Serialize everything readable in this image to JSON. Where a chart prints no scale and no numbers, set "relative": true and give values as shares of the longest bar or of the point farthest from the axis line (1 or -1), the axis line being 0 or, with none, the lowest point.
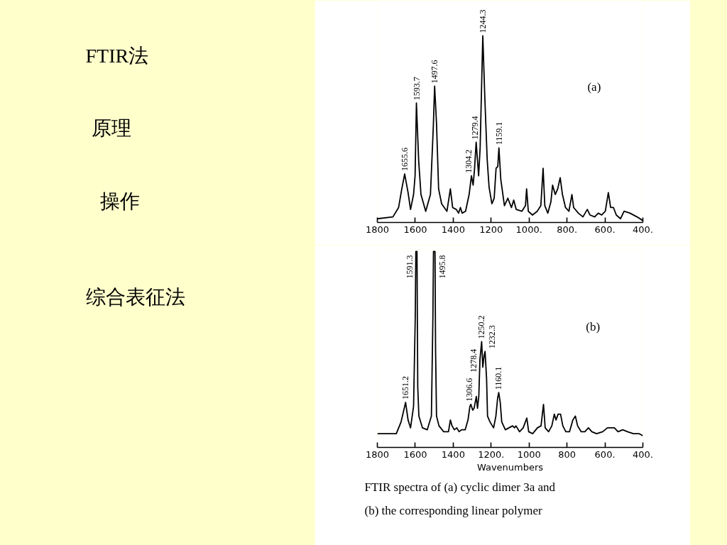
{
  "chart_data": [
    {
      "type": "other",
      "annotations": [
        "FTIR法",
        "原理",
        "操作",
        "综合表征法"
      ]
    },
    {
      "type": "line",
      "title": "(a)",
      "relative": true,
      "xlim": [
        1800,
        400
      ],
      "xticks": [
        1800,
        1600,
        1400,
        1200,
        {
          "value": 1000,
          "label": "1000."
        },
        {
          "value": 800,
          "label": "800."
        },
        {
          "value": 600,
          "label": "600."
        },
        {
          "value": 400,
          "label": "400."
        }
      ],
      "series": [
        {
          "color": "#000000",
          "x": [
            1800,
            1718,
            1688,
            1671,
            1656,
            1638,
            1625,
            1609,
            1601,
            1594,
            1582,
            1570,
            1545,
            1520,
            1505,
            1498,
            1488,
            1477,
            1461,
            1433,
            1415,
            1403,
            1384,
            1372,
            1362,
            1353,
            1335,
            1316,
            1304,
            1295,
            1288,
            1279,
            1266,
            1258,
            1244,
            1233,
            1221,
            1211,
            1196,
            1184,
            1174,
            1165,
            1159,
            1149,
            1130,
            1112,
            1093,
            1081,
            1068,
            1038,
            1019,
            1013,
            1004,
            982,
            957,
            938,
            926,
            917,
            901,
            885,
            876,
            862,
            849,
            836,
            824,
            808,
            790,
            774,
            765,
            740,
            716,
            693,
            679,
            654,
            635,
            617,
            598,
            582,
            570,
            555,
            540,
            518,
            499,
            468,
            431,
            400
          ],
          "values": [
            0.02,
            0.03,
            0.08,
            0.18,
            0.26,
            0.16,
            0.07,
            0.15,
            0.25,
            0.64,
            0.33,
            0.15,
            0.06,
            0.15,
            0.51,
            0.73,
            0.53,
            0.18,
            0.1,
            0.06,
            0.18,
            0.08,
            0.07,
            0.05,
            0.08,
            0.05,
            0.06,
            0.15,
            0.25,
            0.2,
            0.28,
            0.43,
            0.25,
            0.4,
            1.0,
            0.66,
            0.34,
            0.19,
            0.1,
            0.13,
            0.29,
            0.3,
            0.4,
            0.23,
            0.09,
            0.13,
            0.08,
            0.12,
            0.07,
            0.06,
            0.09,
            0.18,
            0.06,
            0.04,
            0.06,
            0.09,
            0.29,
            0.09,
            0.05,
            0.11,
            0.2,
            0.15,
            0.18,
            0.24,
            0.15,
            0.08,
            0.06,
            0.15,
            0.08,
            0.05,
            0.03,
            0.07,
            0.04,
            0.03,
            0.05,
            0.04,
            0.06,
            0.16,
            0.08,
            0.08,
            0.04,
            0.02,
            0.06,
            0.05,
            0.03,
            0.01
          ]
        }
      ],
      "annotations": [
        {
          "text": "1655.6",
          "x": 1655.6,
          "y": 0.26
        },
        {
          "text": "1593.7",
          "x": 1593.7,
          "y": 0.64
        },
        {
          "text": "1497.6",
          "x": 1497.6,
          "y": 0.73
        },
        {
          "text": "1304.2",
          "x": 1304.2,
          "y": 0.25
        },
        {
          "text": "1279.4",
          "x": 1279.4,
          "y": 0.43
        },
        {
          "text": "1244.3",
          "x": 1244.3,
          "y": 1.0
        },
        {
          "text": "1159.1",
          "x": 1159.1,
          "y": 0.4
        }
      ]
    },
    {
      "type": "line",
      "title": "(b)",
      "xlabel": "Wavenumbers",
      "relative": true,
      "xlim": [
        1800,
        400
      ],
      "xticks": [
        1800,
        1600,
        1400,
        {
          "value": 1200,
          "label": "1200."
        },
        1000,
        800,
        {
          "value": 600,
          "label": "600."
        },
        {
          "value": 400,
          "label": "400."
        }
      ],
      "series": [
        {
          "color": "#000000",
          "x": [
            1800,
            1700,
            1675,
            1651,
            1638,
            1625,
            1609,
            1600,
            1597,
            1591,
            1587,
            1581,
            1562,
            1537,
            1515,
            1507,
            1504,
            1496,
            1493,
            1488,
            1475,
            1450,
            1425,
            1415,
            1406,
            1394,
            1381,
            1369,
            1356,
            1337,
            1322,
            1312,
            1307,
            1297,
            1290,
            1278,
            1272,
            1265,
            1259,
            1250,
            1244,
            1237,
            1232,
            1224,
            1219,
            1206,
            1187,
            1175,
            1166,
            1160,
            1152,
            1144,
            1125,
            1106,
            1087,
            1077,
            1069,
            1050,
            1031,
            1012,
            1002,
            981,
            956,
            937,
            924,
            915,
            897,
            880,
            867,
            858,
            847,
            834,
            822,
            806,
            787,
            769,
            756,
            744,
            725,
            706,
            687,
            669,
            644,
            612,
            587,
            569,
            550,
            531,
            506,
            481,
            450,
            419,
            400
          ],
          "values": [
            0.07,
            0.07,
            0.13,
            0.23,
            0.14,
            0.1,
            0.21,
            0.67,
            1.0,
            1.0,
            0.31,
            0.16,
            0.1,
            0.09,
            0.16,
            0.67,
            1.0,
            1.0,
            0.5,
            0.16,
            0.11,
            0.08,
            0.08,
            0.14,
            0.11,
            0.09,
            0.1,
            0.08,
            0.09,
            0.09,
            0.14,
            0.21,
            0.22,
            0.19,
            0.2,
            0.26,
            0.2,
            0.26,
            0.45,
            0.54,
            0.41,
            0.47,
            0.49,
            0.35,
            0.16,
            0.13,
            0.1,
            0.16,
            0.25,
            0.28,
            0.23,
            0.13,
            0.09,
            0.1,
            0.11,
            0.1,
            0.11,
            0.08,
            0.1,
            0.15,
            0.08,
            0.07,
            0.1,
            0.11,
            0.22,
            0.1,
            0.08,
            0.11,
            0.17,
            0.14,
            0.17,
            0.17,
            0.11,
            0.08,
            0.08,
            0.14,
            0.16,
            0.11,
            0.08,
            0.08,
            0.1,
            0.08,
            0.07,
            0.08,
            0.1,
            0.1,
            0.1,
            0.08,
            0.09,
            0.08,
            0.07,
            0.07,
            0.06
          ]
        }
      ],
      "annotations": [
        {
          "text": "1651.2",
          "x": 1651.2,
          "y": 0.23
        },
        {
          "text": "1591.3",
          "x": 1591.3,
          "y": 1.0
        },
        {
          "text": "1495.8",
          "x": 1495.8,
          "y": 1.0
        },
        {
          "text": "1306.6",
          "x": 1306.6,
          "y": 0.22
        },
        {
          "text": "1278.4",
          "x": 1278.4,
          "y": 0.26
        },
        {
          "text": "1250.2",
          "x": 1250.2,
          "y": 0.54
        },
        {
          "text": "1232.3",
          "x": 1232.3,
          "y": 0.49
        },
        {
          "text": "1160.1",
          "x": 1160.1,
          "y": 0.28
        },
        "FTIR spectra of (a) cyclic dimer 3a and (b) the corresponding linear polymer"
      ]
    }
  ]
}
